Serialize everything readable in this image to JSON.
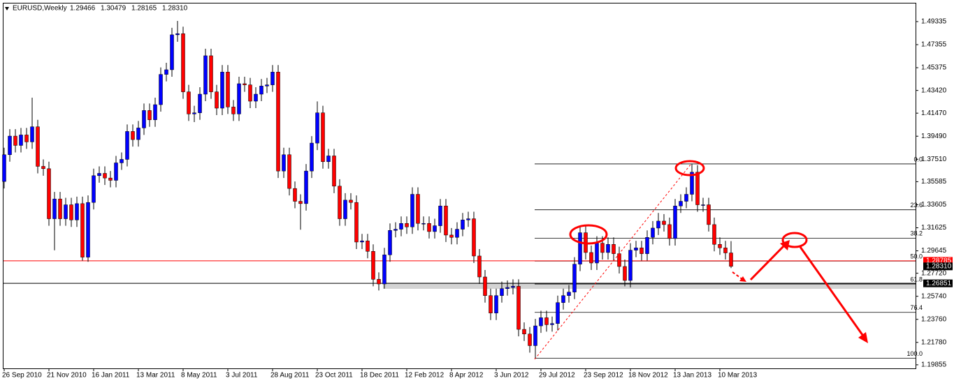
{
  "chart_data": {
    "type": "candlestick",
    "symbol": "EURUSD,Weekly",
    "ohlc_labels": [
      "1.29466",
      "1.30479",
      "1.28165",
      "1.28310"
    ],
    "up_color": "#0000ff",
    "down_color": "#ff0000",
    "categories": [
      "26 Sep 2010",
      null,
      null,
      null,
      null,
      null,
      null,
      null,
      "21 Nov 2010",
      null,
      null,
      null,
      null,
      null,
      null,
      null,
      "16 Jan 2011",
      null,
      null,
      null,
      null,
      null,
      null,
      null,
      "13 Mar 2011",
      null,
      null,
      null,
      null,
      null,
      null,
      null,
      "8 May 2011",
      null,
      null,
      null,
      null,
      null,
      null,
      null,
      "3 Jul 2011",
      null,
      null,
      null,
      null,
      null,
      null,
      null,
      "28 Aug 2011",
      null,
      null,
      null,
      null,
      null,
      null,
      null,
      "23 Oct 2011",
      null,
      null,
      null,
      null,
      null,
      null,
      null,
      "18 Dec 2011",
      null,
      null,
      null,
      null,
      null,
      null,
      null,
      "12 Feb 2012",
      null,
      null,
      null,
      null,
      null,
      null,
      null,
      "8 Apr 2012",
      null,
      null,
      null,
      null,
      null,
      null,
      null,
      "3 Jun 2012",
      null,
      null,
      null,
      null,
      null,
      null,
      null,
      "29 Jul 2012",
      null,
      null,
      null,
      null,
      null,
      null,
      null,
      "23 Sep 2012",
      null,
      null,
      null,
      null,
      null,
      null,
      null,
      "18 Nov 2012",
      null,
      null,
      null,
      null,
      null,
      null,
      null,
      "13 Jan 2013",
      null,
      null,
      null,
      null,
      null,
      null,
      null,
      "10 Mar 2013",
      null,
      null
    ],
    "open": [
      1.356,
      1.379,
      1.395,
      1.387,
      1.396,
      1.39,
      1.403,
      1.369,
      1.367,
      1.324,
      1.341,
      1.324,
      1.336,
      1.323,
      1.337,
      1.291,
      1.338,
      1.361,
      1.363,
      1.359,
      1.357,
      1.372,
      1.375,
      1.399,
      1.392,
      1.402,
      1.417,
      1.409,
      1.422,
      1.448,
      1.452,
      1.482,
      1.483,
      1.433,
      1.414,
      1.415,
      1.431,
      1.464,
      1.433,
      1.419,
      1.45,
      1.42,
      1.414,
      1.44,
      1.439,
      1.425,
      1.431,
      1.438,
      1.439,
      1.45,
      1.365,
      1.379,
      1.35,
      1.339,
      1.337,
      1.365,
      1.389,
      1.415,
      1.373,
      1.378,
      1.352,
      1.324,
      1.34,
      1.338,
      1.304,
      1.305,
      1.296,
      1.272,
      1.268,
      1.293,
      1.314,
      1.315,
      1.32,
      1.317,
      1.345,
      1.32,
      1.32,
      1.313,
      1.318,
      1.335,
      1.31,
      1.308,
      1.315,
      1.323,
      1.324,
      1.292,
      1.274,
      1.258,
      1.243,
      1.258,
      1.264,
      1.265,
      1.266,
      1.229,
      1.225,
      1.215,
      1.232,
      1.239,
      1.233,
      1.234,
      1.252,
      1.258,
      1.261,
      1.285,
      1.312,
      1.295,
      1.286,
      1.303,
      1.295,
      1.302,
      1.294,
      1.283,
      1.271,
      1.297,
      1.299,
      1.294,
      1.308,
      1.316,
      1.322,
      1.319,
      1.307,
      1.335,
      1.339,
      1.345,
      1.364,
      1.336,
      1.336,
      1.319,
      1.302,
      1.299,
      1.29466
    ],
    "high": [
      1.385,
      1.401,
      1.401,
      1.402,
      1.402,
      1.428,
      1.409,
      1.375,
      1.373,
      1.347,
      1.347,
      1.342,
      1.342,
      1.343,
      1.343,
      1.344,
      1.367,
      1.369,
      1.369,
      1.365,
      1.378,
      1.381,
      1.405,
      1.405,
      1.408,
      1.423,
      1.423,
      1.428,
      1.454,
      1.458,
      1.488,
      1.4939,
      1.489,
      1.439,
      1.421,
      1.437,
      1.47,
      1.47,
      1.439,
      1.456,
      1.456,
      1.426,
      1.446,
      1.446,
      1.445,
      1.437,
      1.444,
      1.445,
      1.456,
      1.456,
      1.385,
      1.385,
      1.356,
      1.345,
      1.371,
      1.395,
      1.4248,
      1.421,
      1.384,
      1.384,
      1.358,
      1.346,
      1.346,
      1.344,
      1.311,
      1.311,
      1.302,
      1.278,
      1.299,
      1.32,
      1.321,
      1.326,
      1.326,
      1.351,
      1.351,
      1.326,
      1.326,
      1.324,
      1.341,
      1.341,
      1.316,
      1.321,
      1.329,
      1.33,
      1.33,
      1.298,
      1.28,
      1.264,
      1.264,
      1.27,
      1.271,
      1.272,
      1.272,
      1.235,
      1.231,
      1.238,
      1.245,
      1.245,
      1.24,
      1.258,
      1.264,
      1.267,
      1.291,
      1.318,
      1.318,
      1.301,
      1.309,
      1.309,
      1.308,
      1.308,
      1.3,
      1.289,
      1.303,
      1.305,
      1.305,
      1.314,
      1.322,
      1.329,
      1.328,
      1.325,
      1.341,
      1.345,
      1.351,
      1.3711,
      1.37,
      1.342,
      1.342,
      1.325,
      1.308,
      1.305,
      1.30479
    ],
    "low": [
      1.35,
      1.373,
      1.381,
      1.381,
      1.384,
      1.384,
      1.363,
      1.361,
      1.318,
      1.2969,
      1.318,
      1.318,
      1.317,
      1.317,
      1.288,
      1.287,
      1.332,
      1.355,
      1.353,
      1.351,
      1.351,
      1.366,
      1.369,
      1.386,
      1.386,
      1.396,
      1.403,
      1.403,
      1.416,
      1.442,
      1.446,
      1.476,
      1.427,
      1.408,
      1.407,
      1.409,
      1.425,
      1.427,
      1.413,
      1.413,
      1.414,
      1.408,
      1.408,
      1.433,
      1.419,
      1.419,
      1.425,
      1.432,
      1.433,
      1.359,
      1.359,
      1.344,
      1.333,
      1.3146,
      1.331,
      1.359,
      1.383,
      1.367,
      1.367,
      1.346,
      1.318,
      1.318,
      1.332,
      1.298,
      1.298,
      1.29,
      1.266,
      1.2624,
      1.264,
      1.287,
      1.308,
      1.309,
      1.311,
      1.311,
      1.314,
      1.314,
      1.307,
      1.307,
      1.312,
      1.304,
      1.302,
      1.302,
      1.309,
      1.317,
      1.286,
      1.268,
      1.252,
      1.237,
      1.237,
      1.252,
      1.258,
      1.259,
      1.223,
      1.219,
      1.209,
      1.2042,
      1.226,
      1.227,
      1.227,
      1.228,
      1.246,
      1.252,
      1.255,
      1.279,
      1.289,
      1.28,
      1.28,
      1.289,
      1.289,
      1.288,
      1.277,
      1.266,
      1.265,
      1.291,
      1.288,
      1.288,
      1.302,
      1.31,
      1.313,
      1.301,
      1.301,
      1.329,
      1.333,
      1.339,
      1.33,
      1.33,
      1.313,
      1.296,
      1.293,
      1.289,
      1.28165
    ],
    "close": [
      1.379,
      1.395,
      1.387,
      1.396,
      1.39,
      1.403,
      1.369,
      1.367,
      1.324,
      1.341,
      1.324,
      1.336,
      1.323,
      1.337,
      1.291,
      1.338,
      1.361,
      1.363,
      1.359,
      1.357,
      1.372,
      1.375,
      1.399,
      1.392,
      1.402,
      1.417,
      1.409,
      1.422,
      1.448,
      1.452,
      1.482,
      1.483,
      1.433,
      1.414,
      1.415,
      1.431,
      1.464,
      1.433,
      1.419,
      1.45,
      1.42,
      1.414,
      1.44,
      1.439,
      1.425,
      1.431,
      1.438,
      1.439,
      1.45,
      1.365,
      1.379,
      1.35,
      1.339,
      1.337,
      1.365,
      1.389,
      1.415,
      1.373,
      1.378,
      1.352,
      1.324,
      1.34,
      1.338,
      1.304,
      1.305,
      1.296,
      1.272,
      1.268,
      1.293,
      1.314,
      1.315,
      1.32,
      1.317,
      1.345,
      1.32,
      1.32,
      1.313,
      1.318,
      1.335,
      1.31,
      1.308,
      1.315,
      1.323,
      1.324,
      1.292,
      1.274,
      1.258,
      1.243,
      1.258,
      1.264,
      1.265,
      1.266,
      1.229,
      1.225,
      1.215,
      1.232,
      1.239,
      1.233,
      1.234,
      1.252,
      1.258,
      1.261,
      1.285,
      1.312,
      1.295,
      1.286,
      1.303,
      1.295,
      1.302,
      1.294,
      1.283,
      1.271,
      1.297,
      1.299,
      1.294,
      1.308,
      1.316,
      1.322,
      1.319,
      1.307,
      1.335,
      1.339,
      1.345,
      1.364,
      1.336,
      1.336,
      1.319,
      1.302,
      1.299,
      1.29466,
      1.2831
    ],
    "ylim": [
      1.1955,
      1.5089
    ],
    "yticks": [
      1.49335,
      1.47355,
      1.45375,
      {
        "value": 1.4342,
        "label": "1.43420"
      },
      {
        "value": 1.4147,
        "label": "1.41470"
      },
      {
        "value": 1.3949,
        "label": "1.39490"
      },
      {
        "value": 1.3751,
        "label": "1.37510"
      },
      1.35585,
      1.33605,
      1.31625,
      1.29645,
      {
        "value": 1.2772,
        "label": "1.27720"
      },
      {
        "value": 1.2574,
        "label": "1.25740"
      },
      {
        "value": 1.2376,
        "label": "1.23760"
      },
      {
        "value": 1.2178,
        "label": "1.21780"
      },
      1.19855
    ],
    "price_lines": [
      {
        "value": 1.28785,
        "color": "#ff0000"
      },
      {
        "value": 1.26851,
        "color": "#000000"
      }
    ],
    "fibonacci": {
      "high": 1.3711,
      "low": 1.2042,
      "color": "#000000",
      "levels": [
        {
          "value": 0,
          "label": "0.0"
        },
        23.6,
        38.2,
        {
          "value": 50,
          "label": "50.0"
        },
        61.8,
        76.4,
        {
          "value": 100,
          "label": "100.0"
        }
      ]
    }
  }
}
